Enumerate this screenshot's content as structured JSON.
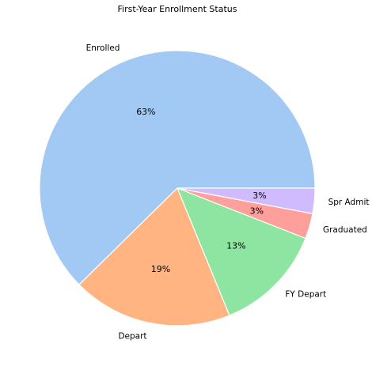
{
  "chart_data": {
    "type": "pie",
    "title": "First-Year Enrollment Status",
    "slices": [
      {
        "label": "Enrolled",
        "value": 63,
        "pct_label": "63%",
        "color": "#a1c9f4"
      },
      {
        "label": "Depart",
        "value": 19,
        "pct_label": "19%",
        "color": "#ffb482"
      },
      {
        "label": "FY Depart",
        "value": 13,
        "pct_label": "13%",
        "color": "#8de5a1"
      },
      {
        "label": "Graduated",
        "value": 3,
        "pct_label": "3%",
        "color": "#ff9f9b"
      },
      {
        "label": "Spr Admit",
        "value": 3,
        "pct_label": "3%",
        "color": "#d0bbff"
      }
    ],
    "start_angle_deg": 0,
    "direction": "counterclockwise"
  }
}
